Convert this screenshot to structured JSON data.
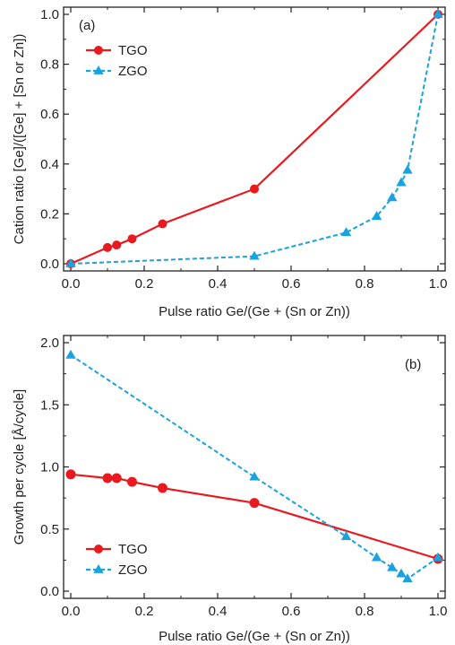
{
  "colors": {
    "tgo": "#e8191f",
    "zgo": "#18a3e0",
    "axis": "#222222"
  },
  "chart_data": [
    {
      "type": "line",
      "panel_label": "(a)",
      "xlabel": "Pulse ratio Ge/(Ge + (Sn or Zn))",
      "ylabel": "Cation ratio [Ge]/([Ge] + [Sn or Zn])",
      "xlim": [
        0.0,
        1.0
      ],
      "ylim": [
        0.0,
        1.0
      ],
      "xticks": [
        "0.0",
        "0.2",
        "0.4",
        "0.6",
        "0.8",
        "1.0"
      ],
      "yticks": [
        "0.0",
        "0.2",
        "0.4",
        "0.6",
        "0.8",
        "1.0"
      ],
      "grid": false,
      "legend": "top-left",
      "series": [
        {
          "name": "TGO",
          "marker": "circle",
          "line": "solid",
          "x": [
            0.0,
            0.1,
            0.125,
            0.167,
            0.25,
            0.5,
            1.0
          ],
          "y": [
            0.0,
            0.065,
            0.075,
            0.1,
            0.16,
            0.3,
            1.0
          ]
        },
        {
          "name": "ZGO",
          "marker": "triangle",
          "line": "dashed",
          "x": [
            0.0,
            0.5,
            0.75,
            0.833,
            0.875,
            0.9,
            0.917,
            1.0
          ],
          "y": [
            0.0,
            0.03,
            0.125,
            0.19,
            0.265,
            0.325,
            0.375,
            1.0
          ]
        }
      ]
    },
    {
      "type": "line",
      "panel_label": "(b)",
      "xlabel": "Pulse ratio Ge/(Ge + (Sn or Zn))",
      "ylabel": "Growth per cycle [Å/cycle]",
      "xlim": [
        0.0,
        1.0
      ],
      "ylim": [
        0.0,
        2.0
      ],
      "xticks": [
        "0.0",
        "0.2",
        "0.4",
        "0.6",
        "0.8",
        "1.0"
      ],
      "yticks": [
        "0.0",
        "0.5",
        "1.0",
        "1.5",
        "2.0"
      ],
      "grid": false,
      "legend": "bottom-left",
      "series": [
        {
          "name": "TGO",
          "marker": "circle",
          "line": "solid",
          "x": [
            0.0,
            0.1,
            0.125,
            0.167,
            0.25,
            0.5,
            1.0
          ],
          "y": [
            0.94,
            0.91,
            0.91,
            0.88,
            0.83,
            0.71,
            0.26
          ]
        },
        {
          "name": "ZGO",
          "marker": "triangle",
          "line": "dashed",
          "x": [
            0.0,
            0.5,
            0.75,
            0.833,
            0.875,
            0.9,
            0.917,
            1.0
          ],
          "y": [
            1.9,
            0.92,
            0.44,
            0.27,
            0.19,
            0.14,
            0.1,
            0.27
          ]
        }
      ]
    }
  ]
}
